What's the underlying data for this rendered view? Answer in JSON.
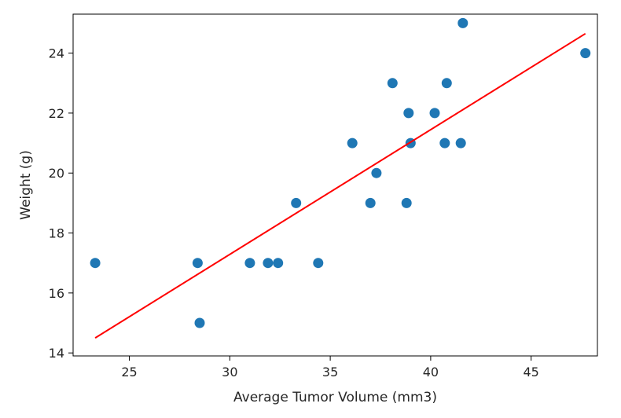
{
  "chart_data": {
    "type": "scatter",
    "xlabel": "Average Tumor Volume (mm3)",
    "ylabel": "Weight (g)",
    "xlim": [
      22.2,
      48.3
    ],
    "ylim": [
      13.9,
      25.3
    ],
    "xticks": [
      25,
      30,
      35,
      40,
      45
    ],
    "yticks": [
      14,
      16,
      18,
      20,
      22,
      24
    ],
    "grid": false,
    "point_color": "#1f77b4",
    "line_color": "#ff0000",
    "points": [
      {
        "x": 23.3,
        "y": 17
      },
      {
        "x": 28.4,
        "y": 17
      },
      {
        "x": 28.5,
        "y": 15
      },
      {
        "x": 31.0,
        "y": 17
      },
      {
        "x": 31.9,
        "y": 17
      },
      {
        "x": 32.4,
        "y": 17
      },
      {
        "x": 33.3,
        "y": 19
      },
      {
        "x": 34.4,
        "y": 17
      },
      {
        "x": 36.1,
        "y": 21
      },
      {
        "x": 37.0,
        "y": 19
      },
      {
        "x": 37.3,
        "y": 20
      },
      {
        "x": 38.1,
        "y": 23
      },
      {
        "x": 38.8,
        "y": 19
      },
      {
        "x": 38.9,
        "y": 22
      },
      {
        "x": 39.0,
        "y": 21
      },
      {
        "x": 40.2,
        "y": 22
      },
      {
        "x": 40.7,
        "y": 21
      },
      {
        "x": 40.8,
        "y": 23
      },
      {
        "x": 41.5,
        "y": 21
      },
      {
        "x": 41.6,
        "y": 25
      },
      {
        "x": 47.7,
        "y": 24
      }
    ],
    "regression_line": {
      "x": [
        23.3,
        47.7
      ],
      "y": [
        14.5,
        24.65
      ]
    }
  }
}
